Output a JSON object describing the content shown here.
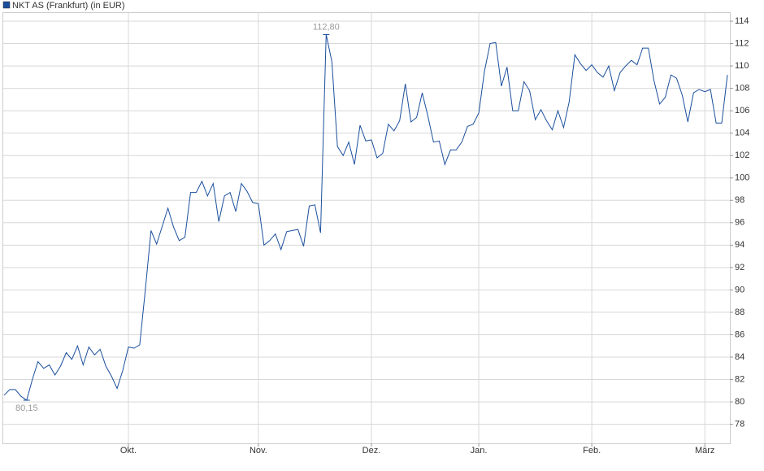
{
  "chart_data": {
    "type": "line",
    "categories": [
      null,
      null,
      null,
      null,
      null,
      null,
      null,
      null,
      null,
      null,
      null,
      null,
      null,
      null,
      null,
      null,
      null,
      null,
      null,
      null,
      null,
      null,
      "Okt.",
      null,
      null,
      null,
      null,
      null,
      null,
      null,
      null,
      null,
      null,
      null,
      null,
      null,
      null,
      null,
      null,
      null,
      null,
      null,
      null,
      null,
      null,
      "Nov.",
      null,
      null,
      null,
      null,
      null,
      null,
      null,
      null,
      null,
      null,
      null,
      null,
      null,
      null,
      null,
      null,
      null,
      null,
      null,
      "Dez.",
      null,
      null,
      null,
      null,
      null,
      null,
      null,
      null,
      null,
      null,
      null,
      null,
      null,
      null,
      null,
      null,
      null,
      null,
      "Jan.",
      null,
      null,
      null,
      null,
      null,
      null,
      null,
      null,
      null,
      null,
      null,
      null,
      null,
      null,
      null,
      null,
      null,
      null,
      null,
      "Feb.",
      null,
      null,
      null,
      null,
      null,
      null,
      null,
      null,
      null,
      null,
      null,
      null,
      null,
      null,
      null,
      null,
      null,
      null,
      null,
      "März",
      null,
      null,
      null,
      null
    ],
    "series": [
      {
        "name": "NKT AS (Frankfurt) (in EUR)",
        "color": "#1b4f9c",
        "values": [
          80.6,
          81.1,
          81.1,
          80.5,
          80.15,
          82,
          83.6,
          83,
          83.3,
          82.4,
          83.2,
          84.4,
          83.8,
          85,
          83.3,
          84.9,
          84.2,
          84.7,
          83.2,
          82.3,
          81.2,
          82.8,
          84.9,
          84.8,
          85.1,
          90,
          95.3,
          94.1,
          95.7,
          97.3,
          95.6,
          94.4,
          94.7,
          98.7,
          98.7,
          99.7,
          98.4,
          99.5,
          96.1,
          98.4,
          98.7,
          97,
          99.5,
          98.8,
          97.8,
          97.7,
          94,
          94.4,
          95,
          93.6,
          95.2,
          95.3,
          95.4,
          93.9,
          97.5,
          97.6,
          95.1,
          112.8,
          110.4,
          102.8,
          102,
          103.2,
          101.2,
          104.7,
          103.3,
          103.4,
          101.8,
          102.2,
          104.8,
          104.2,
          105.1,
          108.4,
          105,
          105.4,
          107.6,
          105.5,
          103.2,
          103.3,
          101.2,
          102.5,
          102.5,
          103.2,
          104.6,
          104.8,
          105.8,
          109.5,
          112,
          112.1,
          108.2,
          109.9,
          106,
          106,
          108.6,
          107.8,
          105.2,
          106.1,
          105.1,
          104.3,
          106,
          104.5,
          106.8,
          111,
          110.2,
          109.6,
          110.1,
          109.4,
          109,
          110,
          107.8,
          109.4,
          110,
          110.5,
          110.1,
          111.6,
          111.6,
          108.7,
          106.6,
          107.2,
          109.2,
          108.9,
          107.4,
          105,
          107.6,
          107.9,
          107.7,
          107.9,
          104.9,
          104.9,
          109.2
        ],
        "value_labels": [
          null,
          null,
          null,
          null,
          "80,15",
          null,
          null,
          null,
          null,
          null,
          null,
          null,
          null,
          null,
          null,
          null,
          null,
          null,
          null,
          null,
          null,
          null,
          null,
          null,
          null,
          null,
          null,
          null,
          null,
          null,
          null,
          null,
          null,
          null,
          null,
          null,
          null,
          null,
          null,
          null,
          null,
          null,
          null,
          null,
          null,
          null,
          null,
          null,
          null,
          null,
          null,
          null,
          null,
          null,
          null,
          null,
          null,
          "112,80",
          null,
          null,
          null,
          null,
          null,
          null,
          null,
          null,
          null,
          null,
          null,
          null,
          null,
          null,
          null,
          null,
          null,
          null,
          null,
          null,
          null,
          null,
          null,
          null,
          null,
          null,
          null,
          null,
          null,
          null,
          null,
          null,
          null,
          null,
          null,
          null,
          null,
          null,
          null,
          null,
          null,
          null,
          null,
          null,
          null,
          null,
          null,
          null,
          null,
          null,
          null,
          null,
          null,
          null,
          null,
          null,
          null,
          null,
          null,
          null,
          null,
          null,
          null,
          null,
          null,
          null,
          null,
          null,
          null,
          null,
          null
        ]
      }
    ],
    "ylim": [
      76.3,
      114.8
    ],
    "yticks": [
      78,
      80,
      82,
      84,
      86,
      88,
      90,
      92,
      94,
      96,
      98,
      100,
      102,
      104,
      106,
      108,
      110,
      112,
      114
    ],
    "grid": true
  }
}
